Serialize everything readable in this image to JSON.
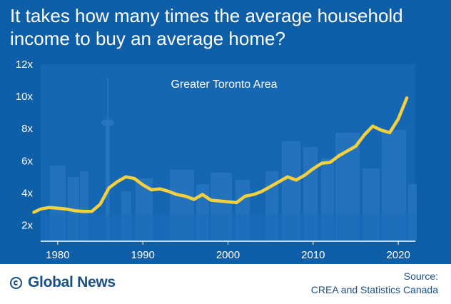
{
  "title": "It takes how many times the average household income to buy an average home?",
  "colors": {
    "background": "#0f5fa8",
    "plot_background": "#1566b3",
    "line": "#f3d03e",
    "text": "#ffffff",
    "footer_text": "#1a4f86"
  },
  "chart_data": {
    "type": "line",
    "title": "",
    "annotation": "Greater Toronto Area",
    "xlabel": "",
    "ylabel": "",
    "xlim": [
      1978,
      2022
    ],
    "ylim": [
      1,
      12
    ],
    "x_ticks": [
      1980,
      1990,
      2000,
      2010,
      2020
    ],
    "x_tick_labels": [
      "1980",
      "1990",
      "2000",
      "2010",
      "2020"
    ],
    "y_ticks": [
      2,
      4,
      6,
      8,
      10,
      12
    ],
    "y_tick_labels": [
      "2x",
      "4x",
      "6x",
      "8x",
      "10x",
      "12x"
    ],
    "grid": false,
    "legend": "none",
    "series": [
      {
        "x": [
          1977.2,
          1978,
          1979,
          1980,
          1981,
          1982,
          1983,
          1984,
          1985,
          1986,
          1987,
          1988,
          1989,
          1990,
          1991,
          1992,
          1993,
          1994,
          1995,
          1996,
          1997,
          1998,
          1999,
          2000,
          2001,
          2002,
          2003,
          2004,
          2005,
          2006,
          2007,
          2008,
          2009,
          2010,
          2011,
          2012,
          2013,
          2014,
          2015,
          2016,
          2017,
          2018,
          2019,
          2020,
          2021
        ],
        "y": [
          2.8,
          3.0,
          3.1,
          3.05,
          3.0,
          2.9,
          2.85,
          2.85,
          3.3,
          4.3,
          4.7,
          5.0,
          4.9,
          4.5,
          4.2,
          4.25,
          4.1,
          3.9,
          3.8,
          3.6,
          3.9,
          3.55,
          3.5,
          3.45,
          3.4,
          3.8,
          3.9,
          4.1,
          4.4,
          4.7,
          5.0,
          4.8,
          5.1,
          5.5,
          5.85,
          5.9,
          6.3,
          6.6,
          6.9,
          7.6,
          8.15,
          7.9,
          7.75,
          8.6,
          9.9
        ]
      }
    ]
  },
  "footer": {
    "logo_icon": "global-news-logo-icon",
    "logo_text": "Global News",
    "source_label": "Source:",
    "source_text": "CREA and Statistics Canada"
  }
}
